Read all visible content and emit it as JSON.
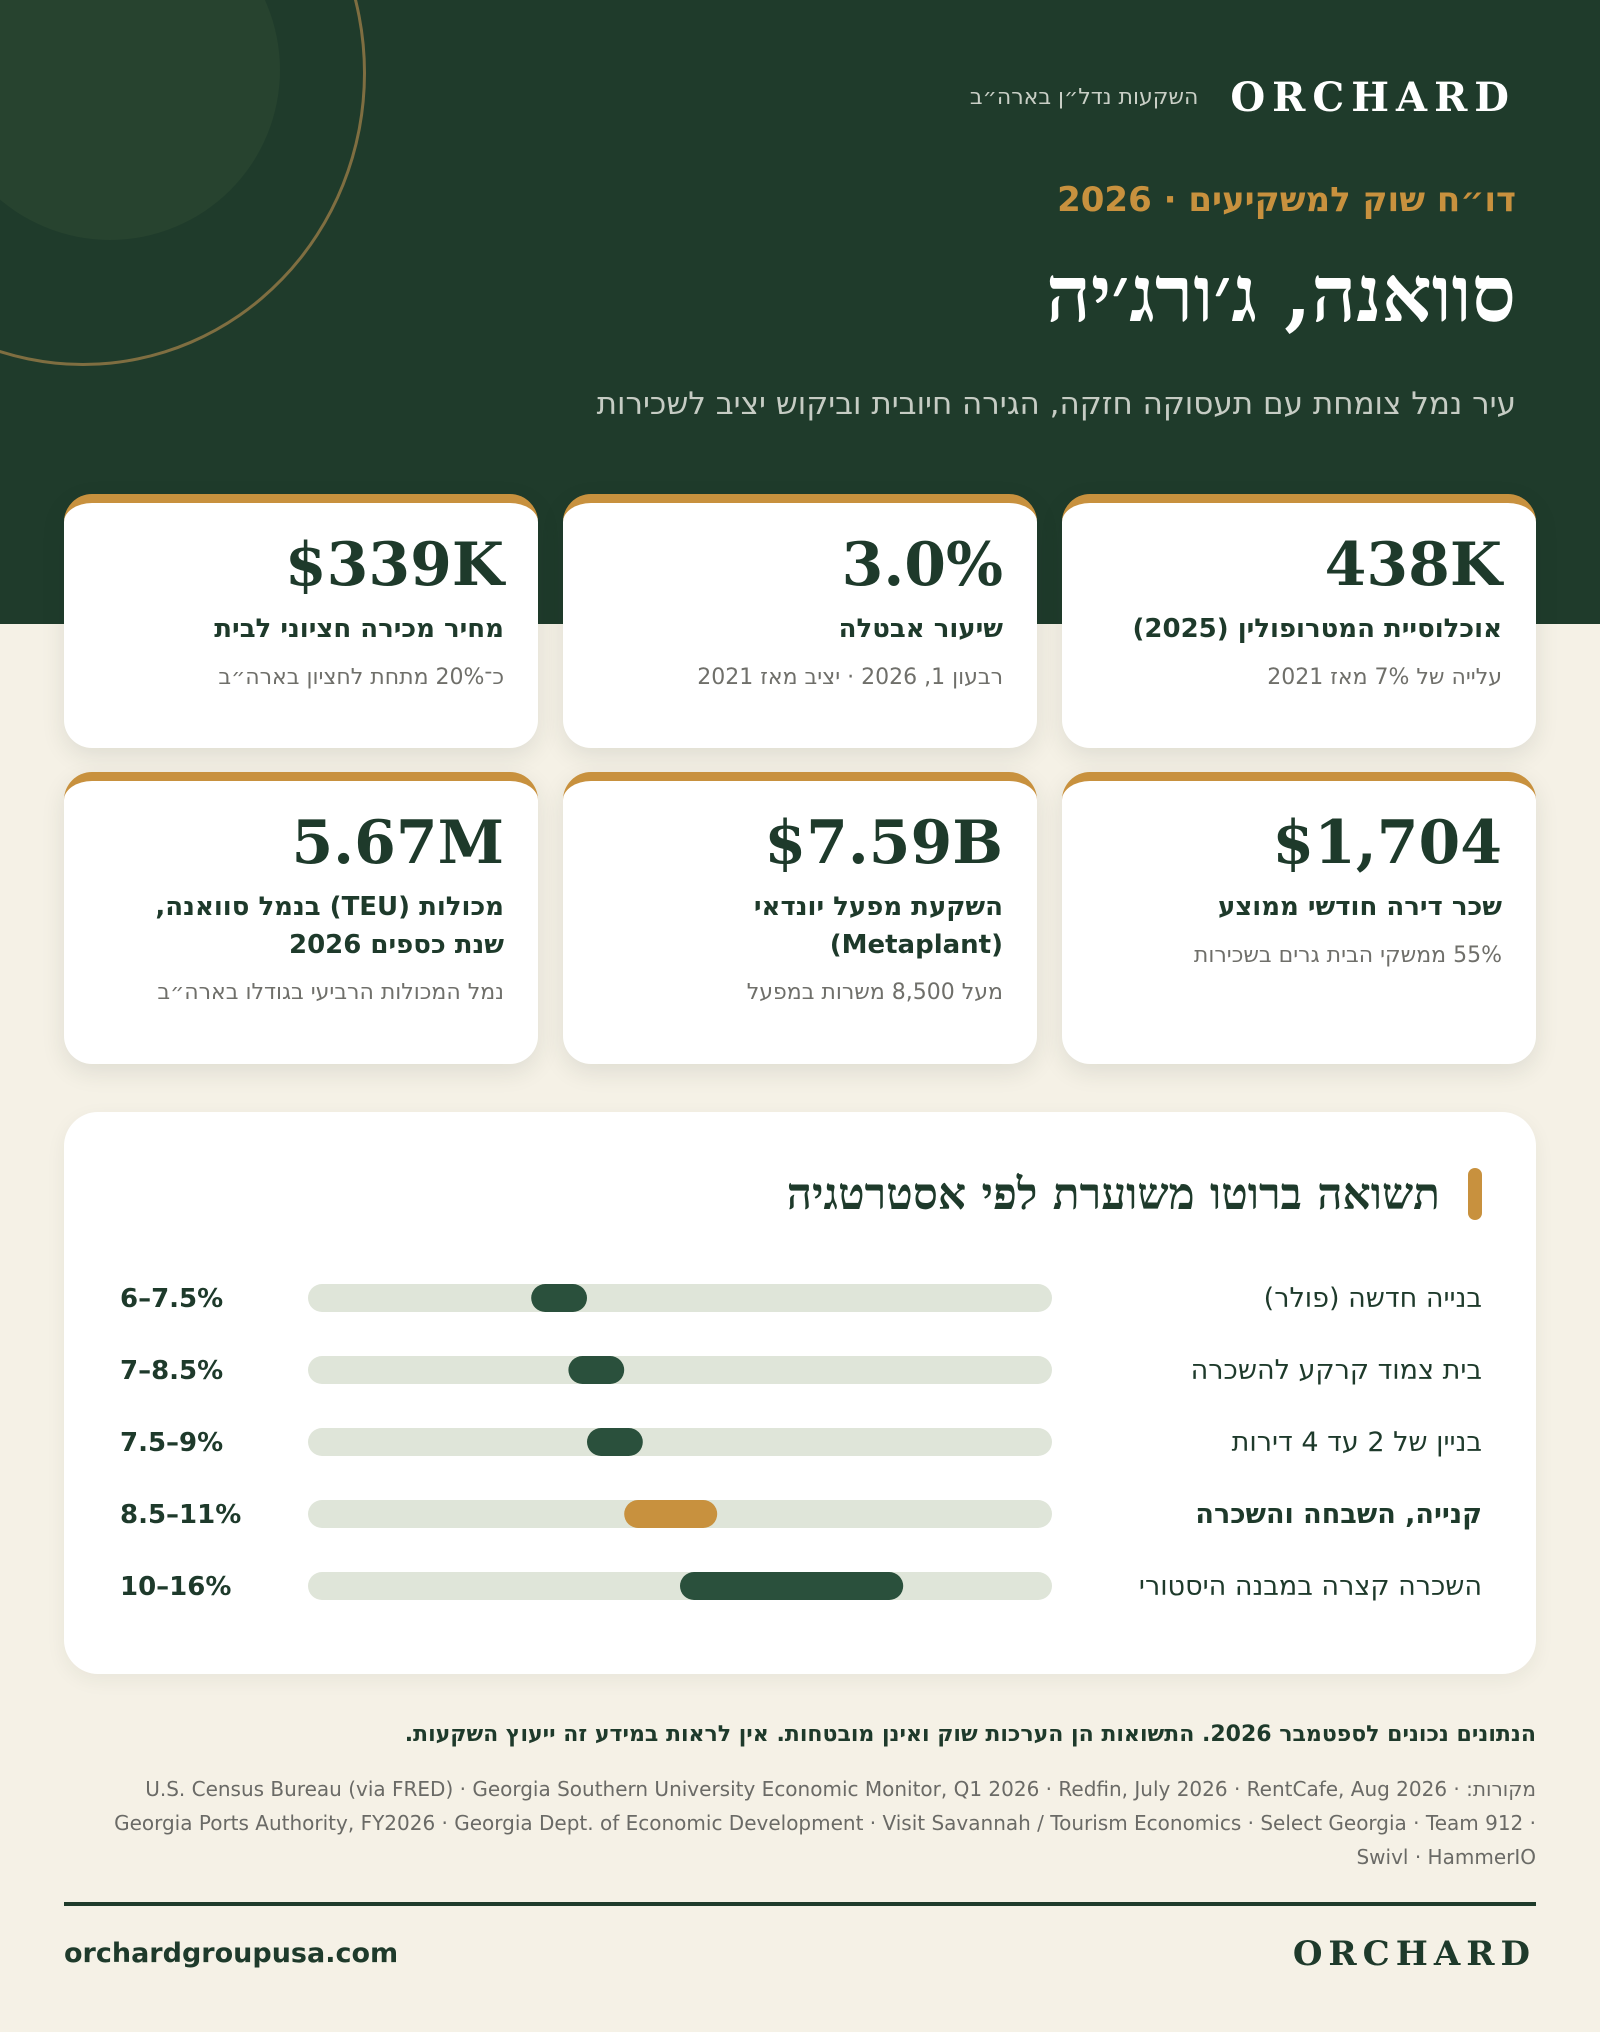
{
  "brand": {
    "logo": "ORCHARD",
    "tagline": "השקעות נדל״ן בארה״ב"
  },
  "hero": {
    "report_label": "דו״ח שוק למשקיעים · 2026",
    "city": "סוואנה, ג׳ורג׳יה",
    "subtitle": "עיר נמל צומחת עם תעסוקה חזקה, הגירה חיובית וביקוש יציב לשכירות"
  },
  "stats": [
    {
      "value": "438K",
      "label": "אוכלוסיית המטרופולין (2025)",
      "note": "עלייה של 7% מאז 2021"
    },
    {
      "value": "3.0%",
      "label": "שיעור אבטלה",
      "note": "רבעון 1, 2026 · יציב מאז 2021"
    },
    {
      "value": "$339K",
      "label": "מחיר מכירה חציוני לבית",
      "note": "כ־20% מתחת לחציון בארה״ב"
    },
    {
      "value": "$1,704",
      "label": "שכר דירה חודשי ממוצע",
      "note": "55% ממשקי הבית גרים בשכירות"
    },
    {
      "value": "$7.59B",
      "label": "השקעת מפעל יונדאי (Metaplant)",
      "note": "מעל 8,500 משרות במפעל"
    },
    {
      "value": "5.67M",
      "label": "מכולות (TEU) בנמל סוואנה, שנת כספים 2026",
      "note": "נמל המכולות הרביעי בגודלו בארה״ב"
    }
  ],
  "chart_data": {
    "type": "range-bar",
    "title": "תשואה ברוטו משוערת לפי אסטרטגיה",
    "xlim": [
      0,
      20
    ],
    "categories": [
      "בנייה חדשה (פולר)",
      "בית צמוד קרקע להשכרה",
      "בניין של 2 עד 4 דירות",
      "קנייה, השבחה והשכרה",
      "השכרה קצרה במבנה היסטורי"
    ],
    "ranges": [
      [
        6,
        7.5
      ],
      [
        7,
        8.5
      ],
      [
        7.5,
        9
      ],
      [
        8.5,
        11
      ],
      [
        10,
        16
      ]
    ],
    "value_labels": [
      "6–7.5%",
      "7–8.5%",
      "7.5–9%",
      "8.5–11%",
      "10–16%"
    ],
    "highlighted": [
      false,
      false,
      false,
      true,
      false
    ],
    "colors": {
      "track": "#dfe5d9",
      "fill": "#2a503c",
      "highlight": "#c8913e"
    }
  },
  "footer": {
    "disclaimer": "הנתונים נכונים לספטמבר 2026. התשואות הן הערכות שוק ואינן מובטחות. אין לראות במידע זה ייעוץ השקעות.",
    "sources": "מקורות: U.S. Census Bureau (via FRED) · Georgia Southern University Economic Monitor, Q1 2026 · Redfin, July 2026 · RentCafe, Aug 2026 · Georgia Ports Authority, FY2026 · Georgia Dept. of Economic Development · Visit Savannah / Tourism Economics · Select Georgia · Team 912 · Swivl · HammerIO",
    "website": "orchardgroupusa.com",
    "logo": "ORCHARD"
  }
}
